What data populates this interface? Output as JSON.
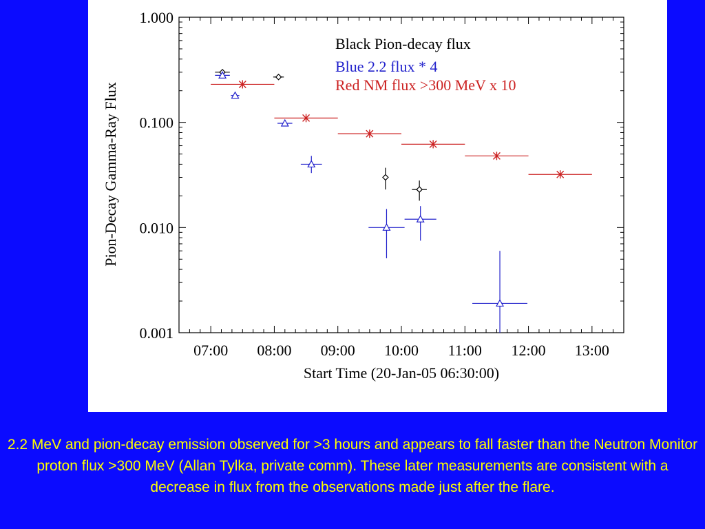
{
  "colors": {
    "background": "#0b0bff",
    "caption": "#ffff00",
    "pion": "#000000",
    "flux22": "#2222cc",
    "nm": "#cc2222"
  },
  "caption": "2.2 MeV and pion-decay emission observed for >3 hours and appears to fall faster than the Neutron Monitor proton flux >300 MeV  (Allan Tylka, private comm).  These later measurements are consistent with a decrease in flux from the observations made just after the flare.",
  "chart_data": {
    "type": "scatter",
    "xlabel": "Start Time (20-Jan-05 06:30:00)",
    "ylabel": "Pion-Decay Gamma-Ray Flux",
    "yscale": "log",
    "xlim": [
      "06:30",
      "13:30"
    ],
    "ylim": [
      0.001,
      1.0
    ],
    "x_ticks": [
      "07:00",
      "08:00",
      "09:00",
      "10:00",
      "11:00",
      "12:00",
      "13:00"
    ],
    "y_ticks": [
      "0.001",
      "0.010",
      "0.100",
      "1.000"
    ],
    "legend": [
      "Black  Pion-decay flux",
      "Blue   2.2 flux * 4",
      "Red NM flux >300 MeV x 10"
    ],
    "legend_position": "top-right",
    "series": [
      {
        "key": "pion",
        "marker": "diamond",
        "points": [
          {
            "x": "07:11",
            "y": 0.3,
            "xerr_min": 7,
            "ylo": 0.3,
            "yhi": 0.3
          },
          {
            "x": "08:04",
            "y": 0.27,
            "xerr_min": 5,
            "ylo": 0.27,
            "yhi": 0.27
          },
          {
            "x": "09:45",
            "y": 0.03,
            "xerr_min": 0,
            "ylo": 0.023,
            "yhi": 0.037
          },
          {
            "x": "10:17",
            "y": 0.023,
            "xerr_min": 7,
            "ylo": 0.018,
            "yhi": 0.028
          }
        ]
      },
      {
        "key": "flux22",
        "marker": "triangle",
        "points": [
          {
            "x": "07:11",
            "y": 0.28,
            "xerr_min": 7,
            "ylo": 0.28,
            "yhi": 0.28
          },
          {
            "x": "07:23",
            "y": 0.18,
            "xerr_min": 4,
            "ylo": 0.18,
            "yhi": 0.18
          },
          {
            "x": "08:10",
            "y": 0.098,
            "xerr_min": 7,
            "ylo": 0.098,
            "yhi": 0.098
          },
          {
            "x": "08:35",
            "y": 0.04,
            "xerr_min": 10,
            "ylo": 0.033,
            "yhi": 0.048
          },
          {
            "x": "09:46",
            "y": 0.01,
            "xerr_min": 17,
            "ylo": 0.0051,
            "yhi": 0.015
          },
          {
            "x": "10:18",
            "y": 0.012,
            "xerr_min": 15,
            "ylo": 0.0075,
            "yhi": 0.016
          },
          {
            "x": "11:33",
            "y": 0.0019,
            "xerr_min": 26,
            "ylo": 0.001,
            "yhi": 0.006
          }
        ]
      },
      {
        "key": "nm",
        "marker": "asterisk",
        "points": [
          {
            "x": "07:30",
            "y": 0.23,
            "xerr_min": 30
          },
          {
            "x": "08:30",
            "y": 0.11,
            "xerr_min": 30
          },
          {
            "x": "09:30",
            "y": 0.078,
            "xerr_min": 30
          },
          {
            "x": "10:30",
            "y": 0.062,
            "xerr_min": 30
          },
          {
            "x": "11:30",
            "y": 0.048,
            "xerr_min": 30
          },
          {
            "x": "12:30",
            "y": 0.032,
            "xerr_min": 30
          }
        ]
      }
    ]
  }
}
